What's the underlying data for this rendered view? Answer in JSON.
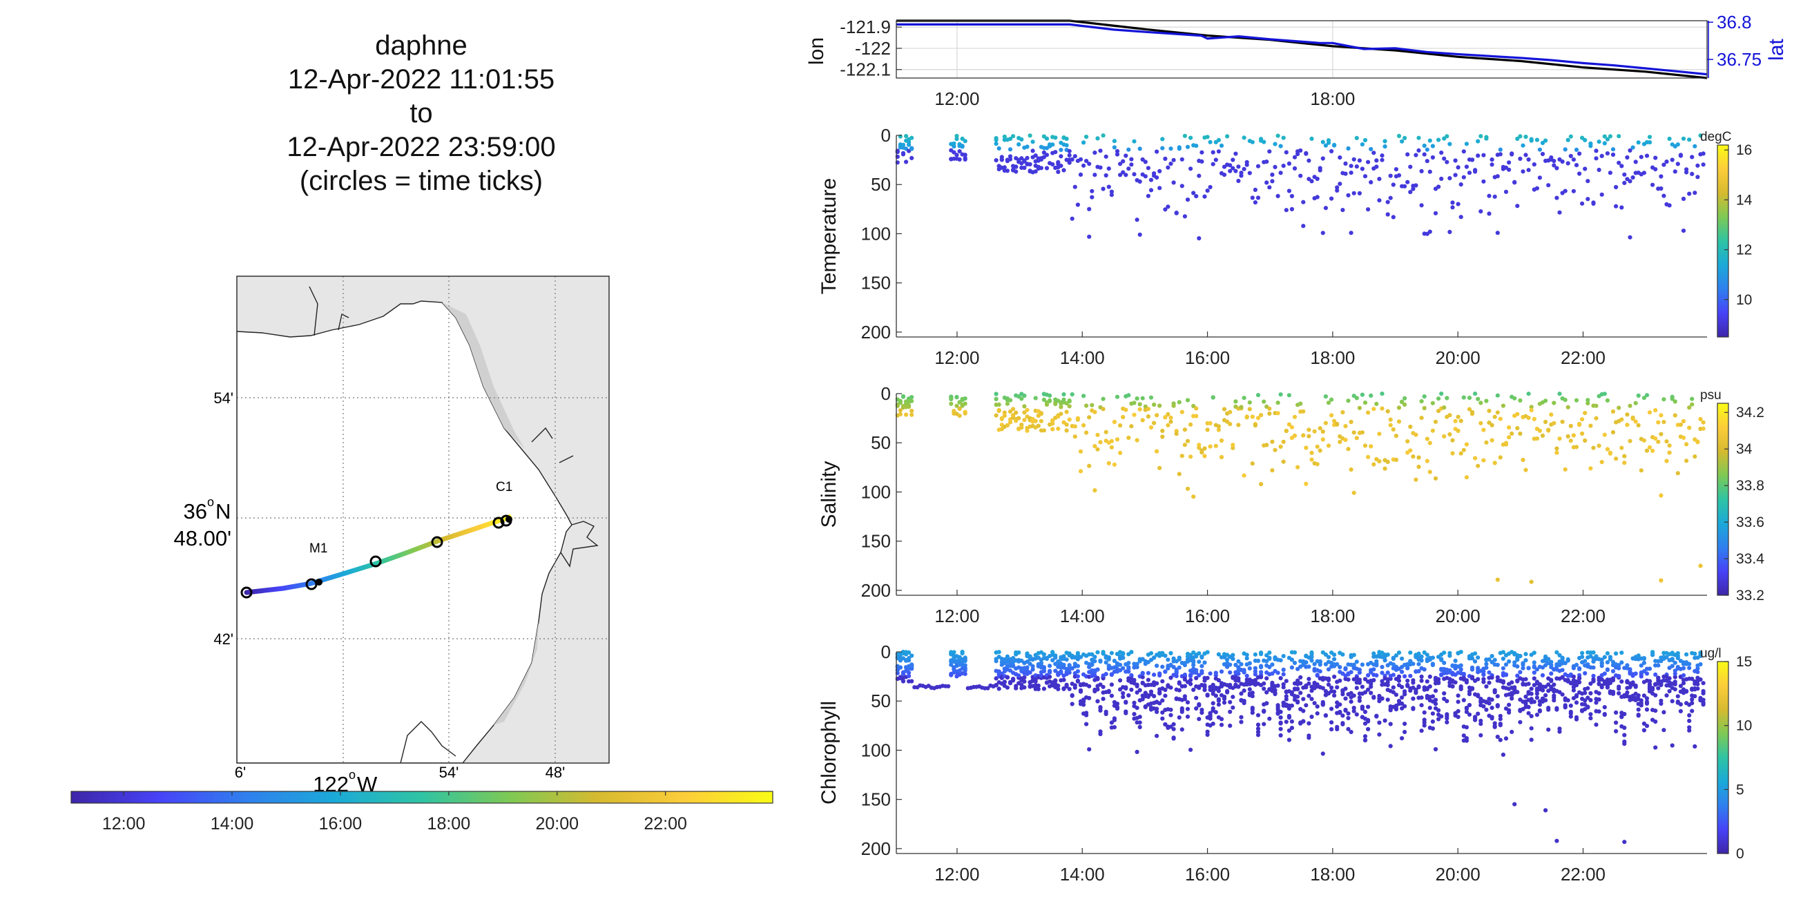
{
  "title_lines": [
    "daphne",
    "12-Apr-2022 11:01:55",
    "to",
    "12-Apr-2022 23:59:00",
    "(circles = time ticks)"
  ],
  "colors": {
    "axis": "#262626",
    "grid": "#d9d9d9",
    "lon_line": "#000000",
    "lat_line": "#1414d9",
    "land": "#e6e6e6",
    "dot_low": "#3a2fb5",
    "parula": [
      "#3e26a8",
      "#4743f8",
      "#2f80ee",
      "#1ba9d8",
      "#2fc4a3",
      "#7ec954",
      "#d6ba30",
      "#fccd3a",
      "#f9fb15"
    ]
  },
  "map": {
    "lat_ticks": [
      "54'",
      "36°N 48.00'",
      "42'"
    ],
    "lat_label_main": "36",
    "lat_label_sup": "o",
    "lat_label_suffix": "N",
    "lat_label_sub": "48.00'",
    "lon_ticks": [
      "6'",
      "122°W",
      "54'",
      "48'"
    ],
    "lon_label_main": "122",
    "lon_label_sup": "o",
    "lon_label_suffix": "W",
    "stations": [
      "M1",
      "C1"
    ],
    "time_colorbar": {
      "ticks": [
        "12:00",
        "14:00",
        "16:00",
        "18:00",
        "20:00",
        "22:00"
      ],
      "range_hours": [
        11.03,
        23.98
      ]
    }
  },
  "chart_data": [
    {
      "type": "line",
      "title": "",
      "xlabel": "",
      "ylabel": "lon",
      "ylabel_right": "lat",
      "x_ticks": [
        "12:00",
        "18:00"
      ],
      "xlim_hours": [
        11.03,
        23.98
      ],
      "ylim_left": [
        -122.14,
        -121.87
      ],
      "y_ticks_left": [
        "-121.9",
        "-122",
        "-122.1"
      ],
      "ylim_right": [
        36.725,
        36.802
      ],
      "y_ticks_right": [
        "36.8",
        "36.75"
      ],
      "grid": true,
      "series": [
        {
          "name": "lon",
          "axis": "left",
          "x": [
            11.03,
            11.5,
            12.0,
            13.0,
            13.8,
            15.0,
            16.0,
            17.0,
            18.0,
            19.0,
            20.0,
            21.0,
            22.0,
            23.0,
            23.98
          ],
          "y": [
            -121.87,
            -121.87,
            -121.87,
            -121.87,
            -121.87,
            -121.91,
            -121.94,
            -121.96,
            -121.99,
            -122.01,
            -122.04,
            -122.06,
            -122.09,
            -122.11,
            -122.14
          ]
        },
        {
          "name": "lat",
          "axis": "right",
          "x": [
            11.03,
            12.0,
            13.0,
            13.8,
            14.5,
            15.0,
            15.9,
            16.0,
            16.5,
            17.0,
            17.8,
            18.0,
            18.5,
            19.0,
            19.5,
            20.0,
            21.0,
            21.5,
            22.0,
            22.5,
            23.0,
            23.5,
            23.98
          ],
          "y": [
            36.797,
            36.797,
            36.797,
            36.797,
            36.79,
            36.787,
            36.782,
            36.778,
            36.781,
            36.777,
            36.772,
            36.772,
            36.764,
            36.765,
            36.76,
            36.757,
            36.752,
            36.749,
            36.745,
            36.742,
            36.738,
            36.734,
            36.73
          ]
        }
      ]
    },
    {
      "type": "scatter",
      "ylabel": "Temperature",
      "colorbar_unit": "degC",
      "x_ticks": [
        "12:00",
        "14:00",
        "16:00",
        "18:00",
        "20:00",
        "22:00"
      ],
      "y_ticks": [
        "0",
        "50",
        "100",
        "150",
        "200"
      ],
      "ylim": [
        0,
        205
      ],
      "xlim_hours": [
        11.03,
        23.98
      ],
      "colorbar_ticks": [
        "16",
        "14",
        "12",
        "10"
      ],
      "clim": [
        8.5,
        16.2
      ],
      "points_summary": "profiles 0-40 m until 13:45 then 0-100 m; surface values ~11-12 degC; deep ~9 degC; isolated deep points near 200 m after 19:45"
    },
    {
      "type": "scatter",
      "ylabel": "Salinity",
      "colorbar_unit": "psu",
      "x_ticks": [
        "12:00",
        "14:00",
        "16:00",
        "18:00",
        "20:00",
        "22:00"
      ],
      "y_ticks": [
        "0",
        "50",
        "100",
        "150",
        "200"
      ],
      "ylim": [
        0,
        205
      ],
      "xlim_hours": [
        11.03,
        23.98
      ],
      "colorbar_ticks": [
        "34.2",
        "34",
        "33.8",
        "33.6",
        "33.4",
        "33.2"
      ],
      "clim": [
        33.2,
        34.25
      ],
      "points_summary": "surface ~33.5-33.7 psu, deeper ~33.9-34.1 psu"
    },
    {
      "type": "scatter",
      "ylabel": "Chlorophyll",
      "colorbar_unit": "ug/l",
      "x_ticks": [
        "12:00",
        "14:00",
        "16:00",
        "18:00",
        "20:00",
        "22:00"
      ],
      "y_ticks": [
        "0",
        "50",
        "100",
        "150",
        "200"
      ],
      "ylim": [
        0,
        205
      ],
      "xlim_hours": [
        11.03,
        23.98
      ],
      "colorbar_ticks": [
        "15",
        "10",
        "5",
        "0"
      ],
      "clim": [
        0,
        15
      ],
      "points_summary": "dense yo-yo profiles; surface ~3-5 ug/l, below ~0-1 ug/l"
    }
  ]
}
